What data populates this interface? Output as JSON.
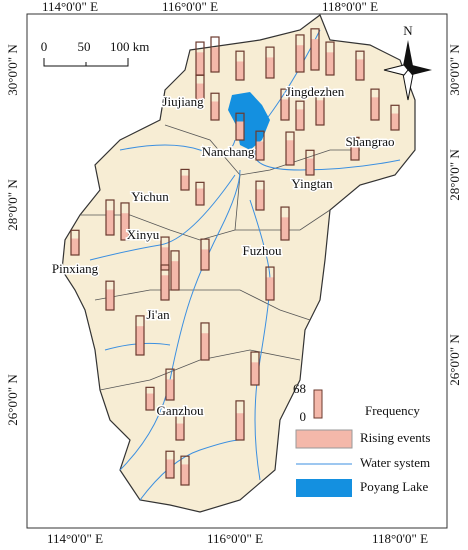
{
  "map": {
    "top_labels": [
      "114°0'0\" E",
      "116°0'0\" E",
      "118°0'0\" E"
    ],
    "bottom_labels": [
      "114°0'0\" E",
      "116°0'0\" E",
      "118°0'0\" E"
    ],
    "left_labels": [
      "30°0'0\" N",
      "28°0'0\" N",
      "26°0'0\" N"
    ],
    "right_labels": [
      "30°0'0\" N",
      "28°0'0\" N",
      "26°0'0\" N"
    ],
    "scale_bar": [
      "0",
      "50",
      "100 km"
    ],
    "north": "N",
    "cities": [
      "Jiujiang",
      "Jingdezhen",
      "Nanchang",
      "Shangrao",
      "Yingtan",
      "Yichun",
      "Xinyu",
      "Fuzhou",
      "Pinxiang",
      "Ji'an",
      "Ganzhou"
    ],
    "legend": {
      "max": 68,
      "min": 0,
      "frequency": "Frequency",
      "rising": "Rising events",
      "water": "Water system",
      "lake": "Poyang Lake"
    },
    "stations": [
      {
        "frequency": 80,
        "rising": 55
      },
      {
        "frequency": 85,
        "rising": 60
      },
      {
        "frequency": 70,
        "rising": 45
      },
      {
        "frequency": 75,
        "rising": 50
      },
      {
        "frequency": 90,
        "rising": 65
      },
      {
        "frequency": 100,
        "rising": 75
      },
      {
        "frequency": 80,
        "rising": 55
      },
      {
        "frequency": 70,
        "rising": 50
      },
      {
        "frequency": 60,
        "rising": 40
      },
      {
        "frequency": 65,
        "rising": 45
      },
      {
        "frequency": 75,
        "rising": 50
      },
      {
        "frequency": 70,
        "rising": 50
      },
      {
        "frequency": 85,
        "rising": 60
      },
      {
        "frequency": 75,
        "rising": 55
      },
      {
        "frequency": 60,
        "rising": 40
      },
      {
        "frequency": 65,
        "rising": 45
      },
      {
        "frequency": 70,
        "rising": 45
      },
      {
        "frequency": 80,
        "rising": 60
      },
      {
        "frequency": 60,
        "rising": 40
      },
      {
        "frequency": 55,
        "rising": 35
      },
      {
        "frequency": 50,
        "rising": 35
      },
      {
        "frequency": 55,
        "rising": 40
      },
      {
        "frequency": 70,
        "rising": 50
      },
      {
        "frequency": 80,
        "rising": 55
      },
      {
        "frequency": 85,
        "rising": 60
      },
      {
        "frequency": 60,
        "rising": 40
      },
      {
        "frequency": 90,
        "rising": 65
      },
      {
        "frequency": 80,
        "rising": 55
      },
      {
        "frequency": 95,
        "rising": 70
      },
      {
        "frequency": 75,
        "rising": 50
      },
      {
        "frequency": 80,
        "rising": 55
      },
      {
        "frequency": 70,
        "rising": 50
      },
      {
        "frequency": 95,
        "rising": 70
      },
      {
        "frequency": 85,
        "rising": 60
      },
      {
        "frequency": 90,
        "rising": 65
      },
      {
        "frequency": 75,
        "rising": 50
      },
      {
        "frequency": 80,
        "rising": 55
      },
      {
        "frequency": 95,
        "rising": 65
      },
      {
        "frequency": 70,
        "rising": 50
      },
      {
        "frequency": 65,
        "rising": 45
      },
      {
        "frequency": 60,
        "rising": 40
      },
      {
        "frequency": 55,
        "rising": 40
      }
    ]
  }
}
